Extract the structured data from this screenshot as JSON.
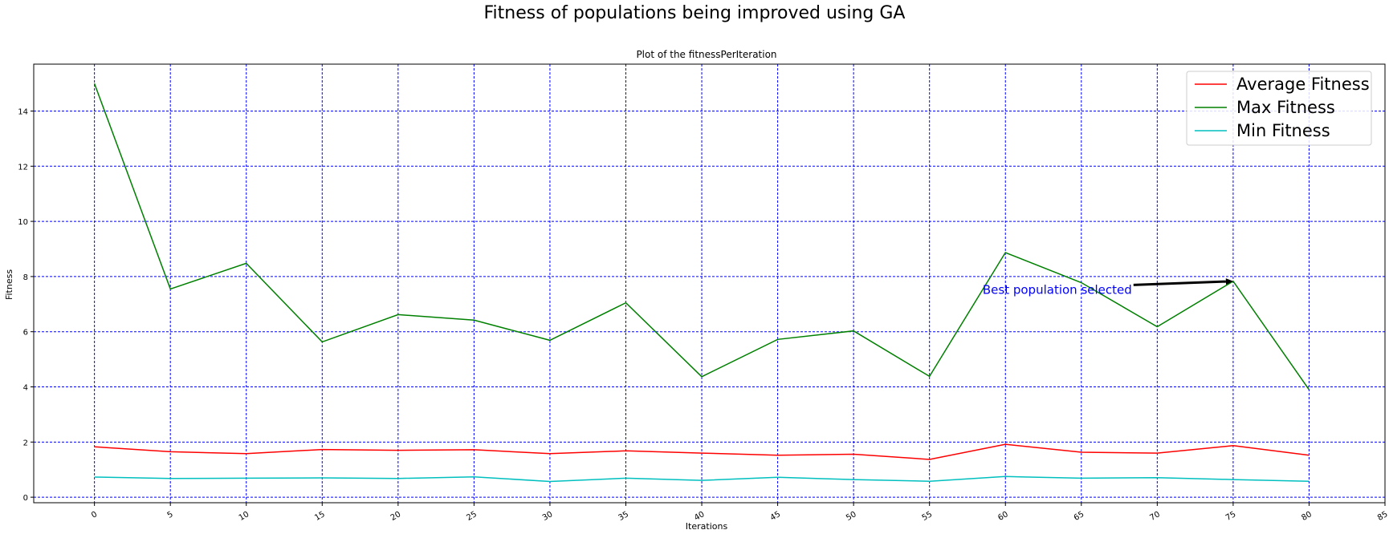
{
  "figure": {
    "suptitle": "Fitness of populations being improved using GA"
  },
  "chart_data": {
    "type": "line",
    "title": "Plot of the fitnessPerIteration",
    "xlabel": "Iterations",
    "ylabel": "Fitness",
    "xlim": [
      -4,
      85
    ],
    "ylim": [
      -0.2,
      15.7
    ],
    "xticks": [
      0,
      5,
      10,
      15,
      20,
      25,
      30,
      35,
      40,
      45,
      50,
      55,
      60,
      65,
      70,
      75,
      80,
      85
    ],
    "yticks": [
      0,
      2,
      4,
      6,
      8,
      10,
      12,
      14
    ],
    "grid": true,
    "grid_color": "#0000ff",
    "legend_position": "top-right",
    "x": [
      0,
      5,
      10,
      15,
      20,
      25,
      30,
      35,
      40,
      45,
      50,
      55,
      60,
      65,
      70,
      75,
      80
    ],
    "series": [
      {
        "name": "Average Fitness",
        "color": "#ff0000",
        "values": [
          1.83,
          1.65,
          1.58,
          1.73,
          1.7,
          1.72,
          1.58,
          1.68,
          1.6,
          1.52,
          1.56,
          1.37,
          1.92,
          1.63,
          1.6,
          1.87,
          1.52
        ]
      },
      {
        "name": "Max Fitness",
        "color": "#008000",
        "values": [
          15.0,
          7.55,
          8.48,
          5.63,
          6.62,
          6.42,
          5.69,
          7.05,
          4.37,
          5.72,
          6.03,
          4.38,
          8.87,
          7.78,
          6.18,
          7.83,
          3.9
        ]
      },
      {
        "name": "Min Fitness",
        "color": "#00bfbf",
        "values": [
          0.73,
          0.68,
          0.69,
          0.7,
          0.68,
          0.74,
          0.57,
          0.69,
          0.61,
          0.72,
          0.64,
          0.58,
          0.75,
          0.69,
          0.71,
          0.64,
          0.58
        ]
      }
    ],
    "annotation": {
      "text": "Best population selected",
      "color": "#0000ff",
      "xy": [
        75,
        7.83
      ],
      "xytext": [
        58.5,
        7.55
      ]
    }
  }
}
